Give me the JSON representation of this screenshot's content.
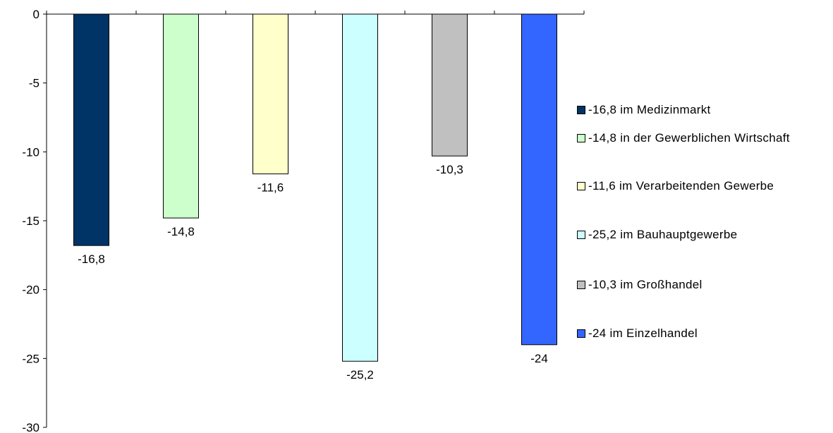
{
  "chart_data": {
    "type": "bar",
    "categories": [
      "-16,8 im Medizinmarkt",
      "-14,8 in der Gewerblichen Wirtschaft",
      "-11,6 im Verarbeitenden Gewerbe",
      "-25,2 im Bauhauptgewerbe",
      "-10,3 im Großhandel",
      "-24 im Einzelhandel"
    ],
    "values": [
      -16.8,
      -14.8,
      -11.6,
      -25.2,
      -10.3,
      -24
    ],
    "data_labels": [
      "-16,8",
      "-14,8",
      "-11,6",
      "-25,2",
      "-10,3",
      "-24"
    ],
    "colors": [
      "#003366",
      "#CCFFCC",
      "#FFFFCC",
      "#CCFFFF",
      "#C0C0C0",
      "#3366FF"
    ],
    "ylim": [
      -30,
      0
    ],
    "yticks": [
      0,
      -5,
      -10,
      -15,
      -20,
      -25,
      -30
    ],
    "ytick_labels": [
      "0",
      "-5",
      "-10",
      "-15",
      "-20",
      "-25",
      "-30"
    ],
    "grid": false,
    "legend_position": "right",
    "legend": [
      {
        "label": "-16,8 im Medizinmarkt",
        "color": "#003366"
      },
      {
        "label": "-14,8 in der Gewerblichen Wirtschaft",
        "color": "#CCFFCC"
      },
      {
        "label": "-11,6 im Verarbeitenden Gewerbe",
        "color": "#FFFFCC"
      },
      {
        "label": "-25,2 im Bauhauptgewerbe",
        "color": "#CCFFFF"
      },
      {
        "label": "-10,3 im Großhandel",
        "color": "#C0C0C0"
      },
      {
        "label": "-24 im Einzelhandel",
        "color": "#3366FF"
      }
    ]
  }
}
